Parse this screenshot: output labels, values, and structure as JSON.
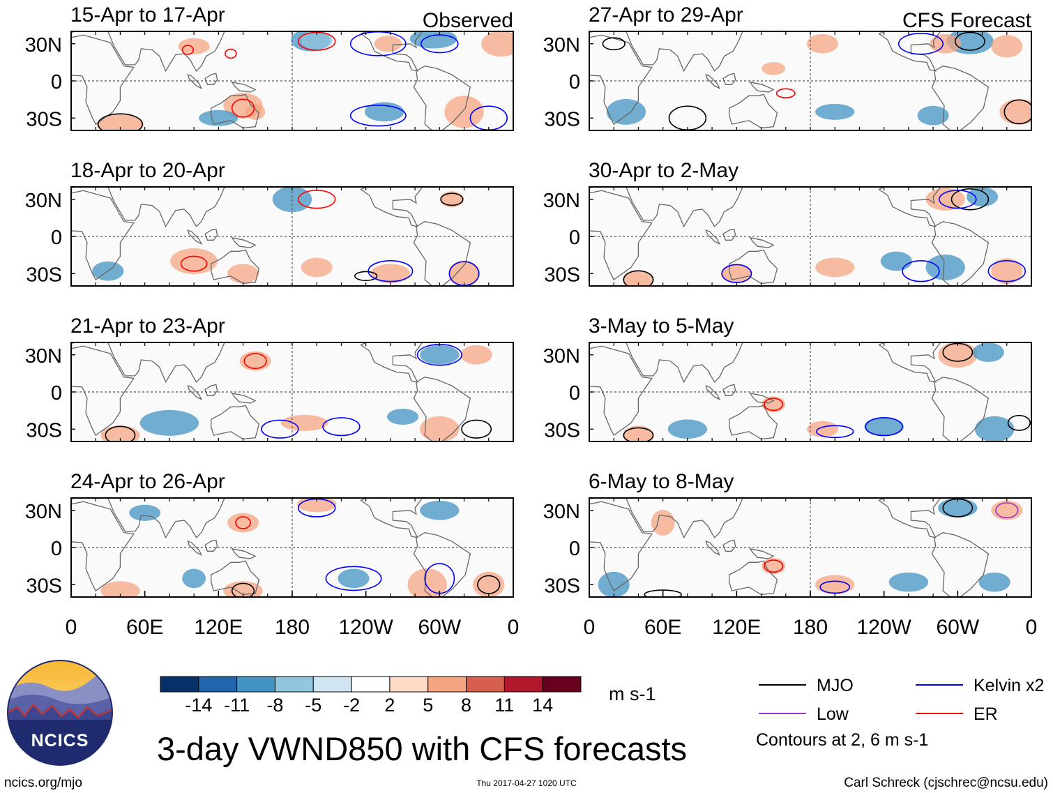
{
  "chart_data": {
    "type": "heatmap",
    "title": "3-day VWND850 with CFS forecasts",
    "variable": "VWND850",
    "units": "m s-1",
    "columns": [
      {
        "header": "Observed",
        "panels": [
          {
            "title": "15-Apr to 17-Apr"
          },
          {
            "title": "18-Apr to 20-Apr"
          },
          {
            "title": "21-Apr to 23-Apr"
          },
          {
            "title": "24-Apr to 26-Apr"
          }
        ]
      },
      {
        "header": "CFS Forecast",
        "panels": [
          {
            "title": "27-Apr to 29-Apr"
          },
          {
            "title": "30-Apr to 2-May"
          },
          {
            "title": "3-May to 5-May"
          },
          {
            "title": "6-May to 8-May"
          }
        ]
      }
    ],
    "lat_ticks": [
      "30N",
      "0",
      "30S"
    ],
    "lat_values": [
      30,
      0,
      -30
    ],
    "lat_range": [
      -40,
      40
    ],
    "lon_ticks": [
      "0",
      "60E",
      "120E",
      "180",
      "120W",
      "60W",
      "0"
    ],
    "lon_values": [
      0,
      60,
      120,
      180,
      240,
      300,
      360
    ],
    "lon_range": [
      0,
      360
    ],
    "colorbar": {
      "ticks": [
        "-14",
        "-11",
        "-8",
        "-5",
        "-2",
        "2",
        "5",
        "8",
        "11",
        "14"
      ],
      "colors": [
        "#08306b",
        "#2166ac",
        "#4393c3",
        "#92c5de",
        "#d1e5f0",
        "#ffffff",
        "#fddbc7",
        "#f4a582",
        "#d6604d",
        "#b2182b",
        "#67001f"
      ],
      "units_label": "m s-1"
    },
    "contour_legend": [
      {
        "label": "MJO",
        "color": "#000000"
      },
      {
        "label": "Kelvin x2",
        "color": "#0000ff"
      },
      {
        "label": "Low",
        "color": "#9932cc"
      },
      {
        "label": "ER",
        "color": "#ff0000"
      }
    ],
    "contour_note": "Contours at 2, 6 m s-1"
  },
  "footer": {
    "logo_text": "NCICS",
    "url": "ncics.org/mjo",
    "timestamp": "Thu 2017-04-27 1020 UTC",
    "credit": "Carl Schreck (cjschrec@ncsu.edu)"
  },
  "colors": {
    "land_outline": "#666666",
    "frame": "#000000",
    "dashed": "#555555",
    "logo_dark": "#1f2b6e"
  }
}
